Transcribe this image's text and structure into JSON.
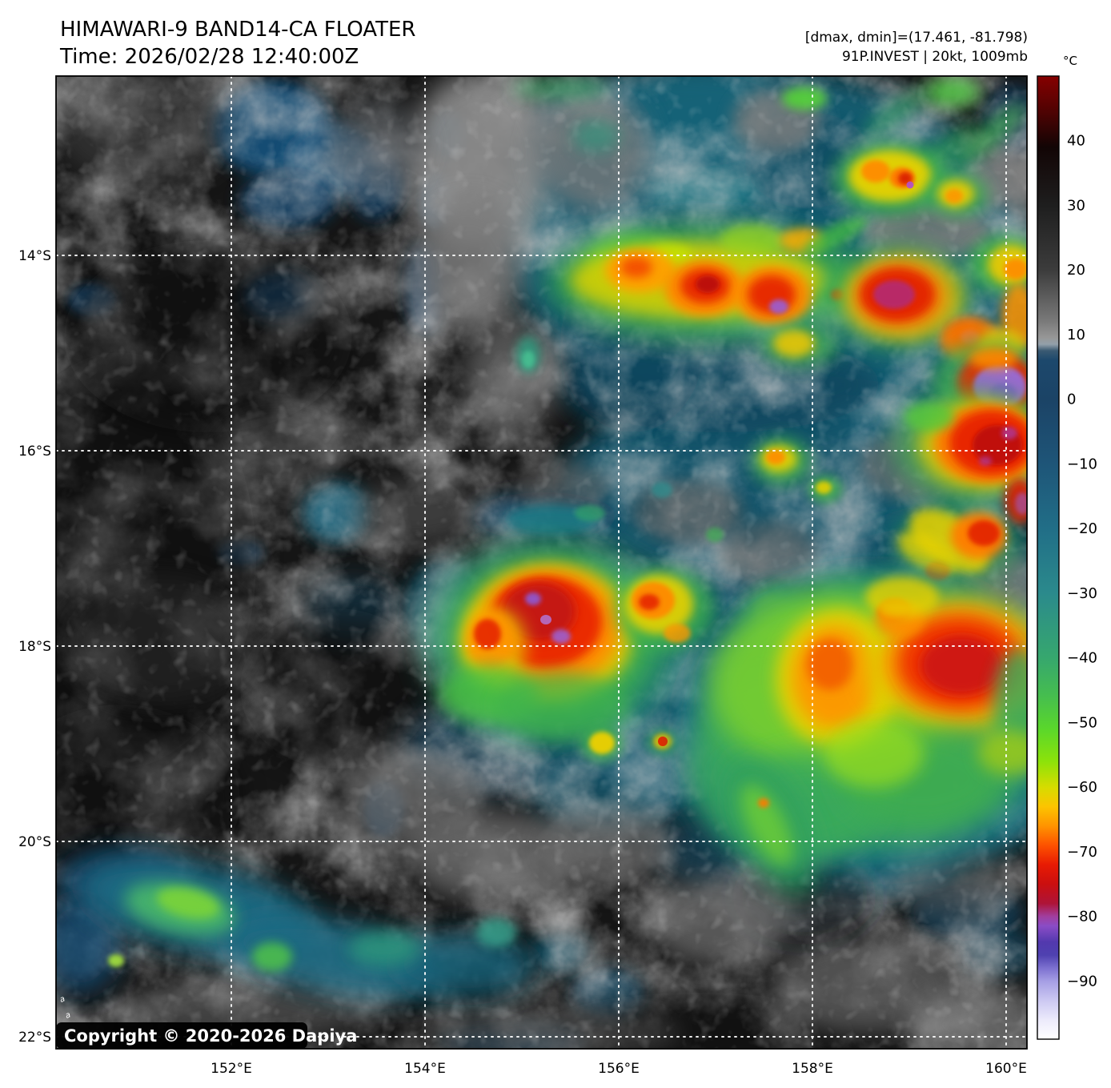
{
  "header": {
    "title": "HIMAWARI-9 BAND14-CA FLOATER",
    "time_line": "Time: 2026/02/28 12:40:00Z"
  },
  "annotation": {
    "range_line": "[dmax, dmin]=(17.461, -81.798)",
    "storm_line": "91P.INVEST | 20kt, 1009mb"
  },
  "colorbar": {
    "unit": "°C",
    "vmax": 50,
    "vmin": -99,
    "ticks": [
      {
        "value": 40,
        "label": "40"
      },
      {
        "value": 30,
        "label": "30"
      },
      {
        "value": 20,
        "label": "20"
      },
      {
        "value": 10,
        "label": "10"
      },
      {
        "value": 0,
        "label": "0"
      },
      {
        "value": -10,
        "label": "−10"
      },
      {
        "value": -20,
        "label": "−20"
      },
      {
        "value": -30,
        "label": "−30"
      },
      {
        "value": -40,
        "label": "−40"
      },
      {
        "value": -50,
        "label": "−50"
      },
      {
        "value": -60,
        "label": "−60"
      },
      {
        "value": -70,
        "label": "−70"
      },
      {
        "value": -80,
        "label": "−80"
      },
      {
        "value": -90,
        "label": "−90"
      }
    ],
    "stops": [
      {
        "t": 50,
        "c": "#860000"
      },
      {
        "t": 44,
        "c": "#4a0303"
      },
      {
        "t": 39,
        "c": "#120505"
      },
      {
        "t": 30,
        "c": "#1e1e1e"
      },
      {
        "t": 20,
        "c": "#3c3c3c"
      },
      {
        "t": 12,
        "c": "#7a7a7a"
      },
      {
        "t": 9.5,
        "c": "#979797"
      },
      {
        "t": 8.5,
        "c": "#93a0aa"
      },
      {
        "t": 7.5,
        "c": "#3a5a72"
      },
      {
        "t": 6,
        "c": "#1c486c"
      },
      {
        "t": 0,
        "c": "#1b4366"
      },
      {
        "t": -10,
        "c": "#1e5578"
      },
      {
        "t": -20,
        "c": "#216e87"
      },
      {
        "t": -30,
        "c": "#2b8a8c"
      },
      {
        "t": -40,
        "c": "#36a76e"
      },
      {
        "t": -46,
        "c": "#46be4e"
      },
      {
        "t": -51,
        "c": "#5ad72b"
      },
      {
        "t": -56,
        "c": "#8ce20a"
      },
      {
        "t": -60,
        "c": "#d6dc00"
      },
      {
        "t": -63,
        "c": "#fcc400"
      },
      {
        "t": -66,
        "c": "#ff9400"
      },
      {
        "t": -69,
        "c": "#fd5200"
      },
      {
        "t": -72,
        "c": "#e81b03"
      },
      {
        "t": -75,
        "c": "#cb0f0f"
      },
      {
        "t": -78,
        "c": "#ae1438"
      },
      {
        "t": -80,
        "c": "#a13e9e"
      },
      {
        "t": -81.5,
        "c": "#8a4cc6"
      },
      {
        "t": -84,
        "c": "#5239ae"
      },
      {
        "t": -86,
        "c": "#4f41b0"
      },
      {
        "t": -88,
        "c": "#7d71d0"
      },
      {
        "t": -90,
        "c": "#a59ee4"
      },
      {
        "t": -93,
        "c": "#ccc8f2"
      },
      {
        "t": -96,
        "c": "#eceafb"
      },
      {
        "t": -99,
        "c": "#ffffff"
      }
    ]
  },
  "axes": {
    "lat_ticks": [
      {
        "value": 14,
        "label": "14°S"
      },
      {
        "value": 16,
        "label": "16°S"
      },
      {
        "value": 18,
        "label": "18°S"
      },
      {
        "value": 20,
        "label": "20°S"
      },
      {
        "value": 22,
        "label": "22°S"
      }
    ],
    "lon_ticks": [
      {
        "value": 152,
        "label": "152°E"
      },
      {
        "value": 154,
        "label": "154°E"
      },
      {
        "value": 156,
        "label": "156°E"
      },
      {
        "value": 158,
        "label": "158°E"
      },
      {
        "value": 160,
        "label": "160°E"
      }
    ]
  },
  "map": {
    "copyright": "Copyright © 2020-2026 Dapiya",
    "corner_mark": "a",
    "grid_style": "white dotted lat/lon grid",
    "features": [
      {
        "label": "convective band near 14°S, 155.5–158.3°E",
        "peak": "red cores ≈ −75°C with small violet spot ≈ −80°C"
      },
      {
        "label": "cluster near 13.1°S, 158.7°E",
        "peak": "orange-red spots ≈ −70°C"
      },
      {
        "label": "eastern complex 14–16.6°S near 159.5–160.2°E",
        "peak": "red blobs with violet cores ≈ −80 to −86°C"
      },
      {
        "label": "storm cell near 17.6°S, 155.2°E",
        "peak": "dark red core with violet flecks ≈ −78°C"
      },
      {
        "label": "large cloud mass 17.5–19.5°S, 157.3–160.2°E",
        "peak": "red areas ≈ −70°C over broad green ≈ −50°C"
      },
      {
        "label": "band near 20.8°S, 150.5–154.6°E",
        "peak": "green cores ≈ −45°C"
      },
      {
        "label": "western half",
        "peak": "mostly warm/clear grays ≈ 0 to +20°C with scattered blue low cloud"
      }
    ]
  }
}
